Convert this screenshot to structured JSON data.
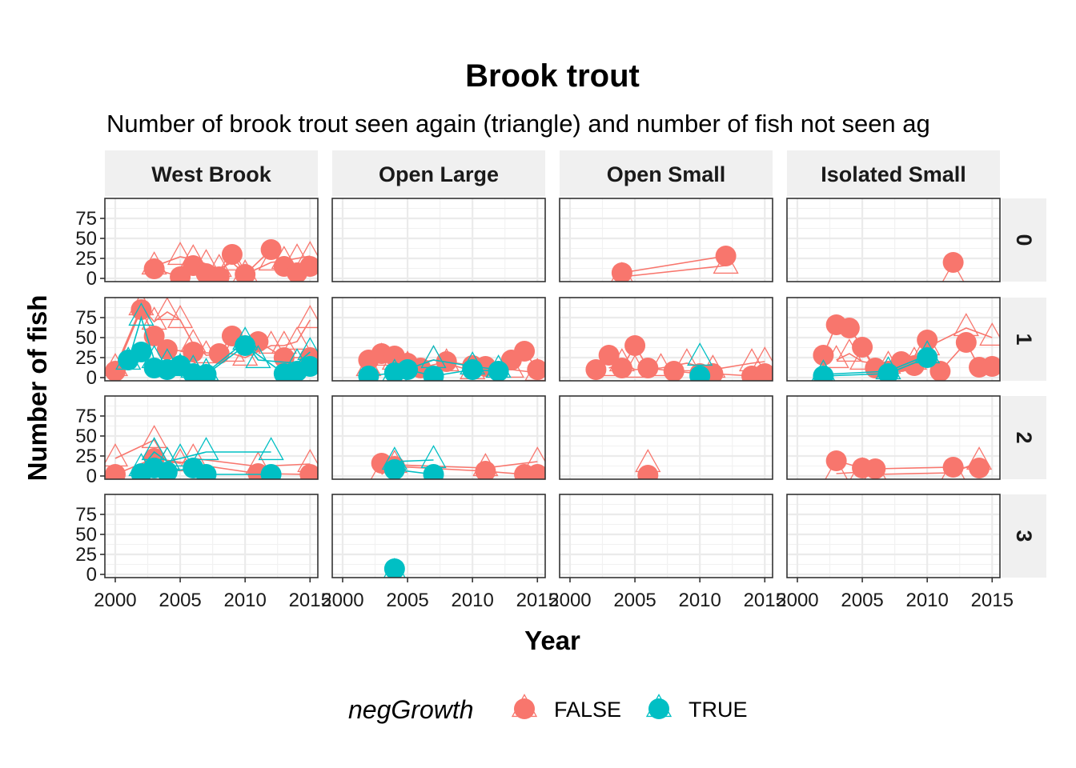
{
  "chart_data": {
    "type": "scatter",
    "title": "Brook trout",
    "subtitle": "Number of brook trout seen again (triangle) and number of fish not seen ag",
    "xlabel": "Year",
    "ylabel": "Number of fish",
    "xlim": [
      1999.2,
      2015.6
    ],
    "ylim": [
      -4,
      100
    ],
    "x_ticks": [
      2000,
      2005,
      2010,
      2015
    ],
    "x_tick_labels": [
      "2000",
      "2005",
      "2010",
      "2015"
    ],
    "y_ticks": [
      0,
      25,
      50,
      75
    ],
    "y_tick_labels": [
      "0",
      "25",
      "50",
      "75"
    ],
    "grid": true,
    "legend": {
      "position": "bottom",
      "title": "negGrowth",
      "entries": [
        {
          "label": "FALSE",
          "color": "#F8766D"
        },
        {
          "label": "TRUE",
          "color": "#00BFC4"
        }
      ]
    },
    "col_facets": [
      "West Brook",
      "Open Large",
      "Open Small",
      "Isolated Small"
    ],
    "row_facets": [
      "0",
      "1",
      "2",
      "3"
    ],
    "colors": {
      "FALSE": "#F8766D",
      "TRUE": "#00BFC4"
    },
    "panels": [
      {
        "col": 0,
        "row": 0,
        "series": [
          {
            "group": "FALSE",
            "not_seen": [
              [
                2003,
                12
              ],
              [
                2005,
                2
              ],
              [
                2006,
                16
              ],
              [
                2007,
                6
              ],
              [
                2008,
                2
              ],
              [
                2009,
                30
              ],
              [
                2010,
                5
              ],
              [
                2012,
                36
              ],
              [
                2013,
                15
              ],
              [
                2014,
                7
              ],
              [
                2015,
                15
              ]
            ],
            "seen_again": [
              [
                2003,
                15
              ],
              [
                2005,
                27
              ],
              [
                2006,
                24
              ],
              [
                2007,
                18
              ],
              [
                2008,
                12
              ],
              [
                2009,
                20
              ],
              [
                2010,
                5
              ],
              [
                2012,
                20
              ],
              [
                2013,
                22
              ],
              [
                2014,
                25
              ],
              [
                2015,
                28
              ]
            ]
          }
        ]
      },
      {
        "col": 1,
        "row": 0,
        "series": []
      },
      {
        "col": 2,
        "row": 0,
        "series": [
          {
            "group": "FALSE",
            "not_seen": [
              [
                2004,
                7
              ],
              [
                2012,
                28
              ]
            ],
            "seen_again": [
              [
                2004,
                2
              ],
              [
                2012,
                16
              ]
            ]
          }
        ]
      },
      {
        "col": 3,
        "row": 0,
        "series": [
          {
            "group": "FALSE",
            "not_seen": [
              [
                2012,
                20
              ]
            ],
            "seen_again": [
              [
                2012,
                2
              ]
            ]
          }
        ]
      },
      {
        "col": 0,
        "row": 1,
        "series": [
          {
            "group": "FALSE",
            "not_seen": [
              [
                2000,
                8
              ],
              [
                2002,
                85
              ],
              [
                2003,
                52
              ],
              [
                2004,
                35
              ],
              [
                2006,
                32
              ],
              [
                2008,
                30
              ],
              [
                2009,
                52
              ],
              [
                2011,
                45
              ],
              [
                2013,
                25
              ],
              [
                2015,
                25
              ]
            ],
            "seen_again": [
              [
                2000,
                12
              ],
              [
                2002,
                88
              ],
              [
                2003,
                70
              ],
              [
                2004,
                82
              ],
              [
                2005,
                72
              ],
              [
                2006,
                42
              ],
              [
                2007,
                28
              ],
              [
                2009,
                30
              ],
              [
                2010,
                25
              ],
              [
                2012,
                40
              ],
              [
                2013,
                40
              ],
              [
                2014,
                45
              ],
              [
                2015,
                72
              ]
            ]
          },
          {
            "group": "TRUE",
            "not_seen": [
              [
                2001,
                22
              ],
              [
                2002,
                32
              ],
              [
                2003,
                12
              ],
              [
                2004,
                10
              ],
              [
                2005,
                15
              ],
              [
                2006,
                5
              ],
              [
                2007,
                4
              ],
              [
                2010,
                40
              ],
              [
                2013,
                5
              ],
              [
                2014,
                8
              ],
              [
                2015,
                14
              ]
            ],
            "seen_again": [
              [
                2001,
                20
              ],
              [
                2002,
                75
              ],
              [
                2003,
                22
              ],
              [
                2004,
                18
              ],
              [
                2005,
                12
              ],
              [
                2006,
                10
              ],
              [
                2007,
                6
              ],
              [
                2010,
                45
              ],
              [
                2011,
                22
              ],
              [
                2014,
                18
              ],
              [
                2015,
                32
              ]
            ]
          }
        ]
      },
      {
        "col": 1,
        "row": 1,
        "series": [
          {
            "group": "FALSE",
            "not_seen": [
              [
                2002,
                22
              ],
              [
                2003,
                30
              ],
              [
                2004,
                27
              ],
              [
                2005,
                18
              ],
              [
                2006,
                12
              ],
              [
                2008,
                20
              ],
              [
                2010,
                15
              ],
              [
                2011,
                14
              ],
              [
                2013,
                22
              ],
              [
                2014,
                33
              ],
              [
                2015,
                10
              ]
            ],
            "seen_again": [
              [
                2002,
                12
              ],
              [
                2003,
                25
              ],
              [
                2004,
                20
              ],
              [
                2005,
                15
              ],
              [
                2007,
                22
              ],
              [
                2008,
                18
              ],
              [
                2010,
                8
              ],
              [
                2013,
                10
              ],
              [
                2015,
                6
              ]
            ]
          },
          {
            "group": "TRUE",
            "not_seen": [
              [
                2002,
                2
              ],
              [
                2004,
                6
              ],
              [
                2005,
                10
              ],
              [
                2007,
                2
              ],
              [
                2010,
                10
              ],
              [
                2012,
                8
              ]
            ],
            "seen_again": [
              [
                2004,
                5
              ],
              [
                2007,
                22
              ],
              [
                2010,
                14
              ],
              [
                2012,
                10
              ]
            ]
          }
        ]
      },
      {
        "col": 2,
        "row": 1,
        "series": [
          {
            "group": "FALSE",
            "not_seen": [
              [
                2002,
                10
              ],
              [
                2003,
                28
              ],
              [
                2004,
                12
              ],
              [
                2005,
                40
              ],
              [
                2006,
                12
              ],
              [
                2008,
                8
              ],
              [
                2010,
                5
              ],
              [
                2011,
                5
              ],
              [
                2014,
                2
              ],
              [
                2015,
                5
              ]
            ],
            "seen_again": [
              [
                2003,
                12
              ],
              [
                2004,
                18
              ],
              [
                2005,
                10
              ],
              [
                2007,
                12
              ],
              [
                2009,
                18
              ],
              [
                2011,
                10
              ],
              [
                2014,
                18
              ],
              [
                2015,
                20
              ]
            ]
          },
          {
            "group": "TRUE",
            "not_seen": [
              [
                2010,
                2
              ]
            ],
            "seen_again": [
              [
                2010,
                25
              ]
            ]
          }
        ]
      },
      {
        "col": 3,
        "row": 1,
        "series": [
          {
            "group": "FALSE",
            "not_seen": [
              [
                2002,
                28
              ],
              [
                2003,
                66
              ],
              [
                2004,
                62
              ],
              [
                2005,
                38
              ],
              [
                2006,
                12
              ],
              [
                2007,
                8
              ],
              [
                2008,
                20
              ],
              [
                2009,
                15
              ],
              [
                2010,
                47
              ],
              [
                2011,
                8
              ],
              [
                2013,
                44
              ],
              [
                2014,
                13
              ],
              [
                2015,
                14
              ]
            ],
            "seen_again": [
              [
                2003,
                22
              ],
              [
                2004,
                30
              ],
              [
                2005,
                20
              ],
              [
                2007,
                15
              ],
              [
                2009,
                20
              ],
              [
                2010,
                38
              ],
              [
                2013,
                62
              ],
              [
                2015,
                50
              ]
            ]
          },
          {
            "group": "TRUE",
            "not_seen": [
              [
                2002,
                2
              ],
              [
                2007,
                5
              ],
              [
                2010,
                25
              ]
            ],
            "seen_again": [
              [
                2002,
                4
              ],
              [
                2007,
                8
              ],
              [
                2010,
                28
              ]
            ]
          }
        ]
      },
      {
        "col": 0,
        "row": 2,
        "series": [
          {
            "group": "FALSE",
            "not_seen": [
              [
                2000,
                2
              ],
              [
                2003,
                22
              ],
              [
                2011,
                3
              ],
              [
                2015,
                2
              ]
            ],
            "seen_again": [
              [
                2000,
                22
              ],
              [
                2003,
                45
              ],
              [
                2004,
                18
              ],
              [
                2005,
                16
              ],
              [
                2006,
                22
              ],
              [
                2011,
                12
              ],
              [
                2015,
                15
              ]
            ]
          },
          {
            "group": "TRUE",
            "not_seen": [
              [
                2002,
                3
              ],
              [
                2003,
                10
              ],
              [
                2004,
                5
              ],
              [
                2006,
                10
              ],
              [
                2007,
                2
              ],
              [
                2012,
                2
              ]
            ],
            "seen_again": [
              [
                2002,
                10
              ],
              [
                2003,
                30
              ],
              [
                2004,
                18
              ],
              [
                2005,
                22
              ],
              [
                2007,
                30
              ],
              [
                2012,
                30
              ]
            ]
          }
        ]
      },
      {
        "col": 1,
        "row": 2,
        "series": [
          {
            "group": "FALSE",
            "not_seen": [
              [
                2003,
                16
              ],
              [
                2004,
                12
              ],
              [
                2011,
                6
              ],
              [
                2014,
                2
              ],
              [
                2015,
                2
              ]
            ],
            "seen_again": [
              [
                2003,
                2
              ],
              [
                2004,
                14
              ],
              [
                2011,
                10
              ],
              [
                2015,
                18
              ]
            ]
          },
          {
            "group": "TRUE",
            "not_seen": [
              [
                2004,
                8
              ],
              [
                2007,
                2
              ]
            ],
            "seen_again": [
              [
                2004,
                18
              ],
              [
                2007,
                20
              ]
            ]
          }
        ]
      },
      {
        "col": 2,
        "row": 2,
        "series": [
          {
            "group": "FALSE",
            "not_seen": [
              [
                2006,
                1
              ]
            ],
            "seen_again": [
              [
                2006,
                15
              ]
            ]
          }
        ]
      },
      {
        "col": 3,
        "row": 2,
        "series": [
          {
            "group": "FALSE",
            "not_seen": [
              [
                2003,
                19
              ],
              [
                2005,
                10
              ],
              [
                2006,
                9
              ],
              [
                2012,
                11
              ],
              [
                2014,
                10
              ]
            ],
            "seen_again": [
              [
                2003,
                3
              ],
              [
                2005,
                5
              ],
              [
                2006,
                2
              ],
              [
                2012,
                4
              ],
              [
                2014,
                18
              ]
            ]
          }
        ]
      },
      {
        "col": 0,
        "row": 3,
        "series": []
      },
      {
        "col": 1,
        "row": 3,
        "series": [
          {
            "group": "TRUE",
            "not_seen": [
              [
                2004,
                7
              ]
            ],
            "seen_again": [
              [
                2004,
                2
              ]
            ]
          }
        ]
      },
      {
        "col": 2,
        "row": 3,
        "series": []
      },
      {
        "col": 3,
        "row": 3,
        "series": []
      }
    ]
  }
}
